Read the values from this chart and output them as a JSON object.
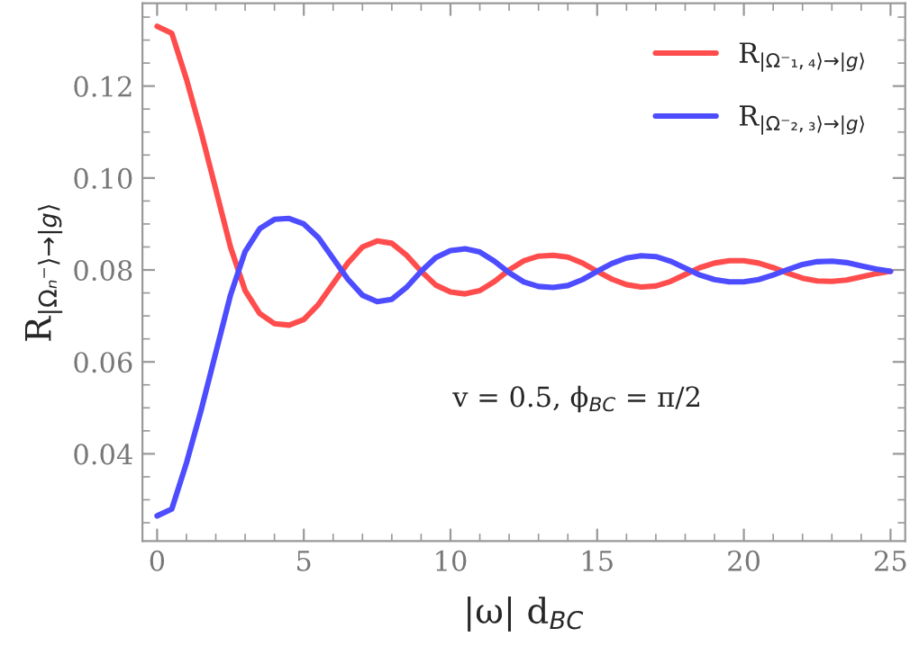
{
  "chart_data": {
    "type": "line",
    "xlabel": "|ω| d$_{BC}$",
    "ylabel": "R$_{|Ωₙ⁻⟩→|g⟩}$",
    "annotations": [
      "v = 0.5, ϕ$_{BC}$ = π/2"
    ],
    "x": [
      0,
      0.5,
      1,
      1.5,
      2,
      2.5,
      3,
      3.5,
      4,
      4.5,
      5,
      5.5,
      6,
      6.5,
      7,
      7.5,
      8,
      8.5,
      9,
      9.5,
      10,
      10.5,
      11,
      11.5,
      12,
      12.5,
      13,
      13.5,
      14,
      14.5,
      15,
      15.5,
      16,
      16.5,
      17,
      17.5,
      18,
      18.5,
      19,
      19.5,
      20,
      20.5,
      21,
      21.5,
      22,
      22.5,
      23,
      23.5,
      24,
      24.5,
      25
    ],
    "series": [
      {
        "name": "R$_{|Ω⁻₁,₄⟩→|g⟩}$",
        "color": "#ff4d4d",
        "values": [
          0.133,
          0.1315,
          0.1215,
          0.11,
          0.0975,
          0.085,
          0.0755,
          0.0705,
          0.0683,
          0.068,
          0.0692,
          0.0725,
          0.077,
          0.0815,
          0.085,
          0.0863,
          0.0858,
          0.0832,
          0.0797,
          0.0767,
          0.0752,
          0.0748,
          0.0755,
          0.0775,
          0.08,
          0.082,
          0.083,
          0.0832,
          0.0828,
          0.0815,
          0.0797,
          0.078,
          0.0768,
          0.0763,
          0.0765,
          0.0775,
          0.079,
          0.0805,
          0.0815,
          0.082,
          0.082,
          0.0815,
          0.0805,
          0.0793,
          0.0782,
          0.0776,
          0.0775,
          0.0778,
          0.0785,
          0.0792,
          0.0797
        ]
      },
      {
        "name": "R$_{|Ω⁻₂,₃⟩→|g⟩}$",
        "color": "#4d4dff",
        "values": [
          0.0265,
          0.028,
          0.038,
          0.0495,
          0.062,
          0.0745,
          0.084,
          0.089,
          0.091,
          0.0912,
          0.09,
          0.087,
          0.0825,
          0.078,
          0.0745,
          0.0731,
          0.0736,
          0.0762,
          0.0797,
          0.0827,
          0.0842,
          0.0846,
          0.0839,
          0.0819,
          0.0794,
          0.0774,
          0.0764,
          0.0762,
          0.0766,
          0.0779,
          0.0797,
          0.0814,
          0.0826,
          0.0831,
          0.0829,
          0.0819,
          0.0804,
          0.0789,
          0.0779,
          0.0774,
          0.0774,
          0.0779,
          0.0789,
          0.0801,
          0.0812,
          0.0818,
          0.0819,
          0.0816,
          0.0809,
          0.0802,
          0.0797
        ]
      }
    ],
    "xlim": [
      -0.5,
      25.5
    ],
    "ylim": [
      0.021,
      0.138
    ],
    "xticks": [
      0,
      5,
      10,
      15,
      20,
      25
    ],
    "yticks": [
      {
        "value": 0.04,
        "label": "0.04"
      },
      {
        "value": 0.06,
        "label": "0.06"
      },
      {
        "value": 0.08,
        "label": "0.08"
      },
      {
        "value": 0.1,
        "label": "0.10"
      },
      {
        "value": 0.12,
        "label": "0.12"
      }
    ],
    "legend": "top right",
    "grid": false,
    "line_style": "solid"
  }
}
